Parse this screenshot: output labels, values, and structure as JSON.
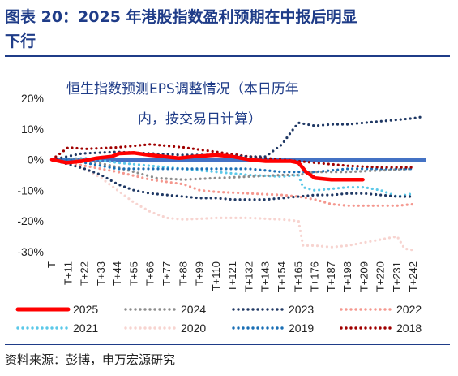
{
  "figure": {
    "title_line1": "图表 20：2025 年港股指数盈利预期在中报后明显",
    "title_line2": "下行",
    "source": "资料来源：彭博，申万宏源研究"
  },
  "chart_data": {
    "type": "line",
    "title_line1": "恒生指数预测EPS调整情况（本日历年",
    "title_line2": "内，按交易日计算）",
    "xlabel": "",
    "ylabel": "",
    "ylim": [
      -30,
      20
    ],
    "yticks": [
      20,
      10,
      0,
      -10,
      -20,
      -30
    ],
    "ytick_labels": [
      "20%",
      "10%",
      "0%",
      "-10%",
      "-20%",
      "-30%"
    ],
    "x_range": [
      0,
      250
    ],
    "xticks": [
      0,
      11,
      22,
      33,
      44,
      55,
      66,
      77,
      88,
      99,
      110,
      121,
      132,
      143,
      154,
      165,
      176,
      187,
      198,
      209,
      220,
      231,
      242
    ],
    "xtick_labels": [
      "T",
      "T+11",
      "T+22",
      "T+33",
      "T+44",
      "T+55",
      "T+66",
      "T+77",
      "T+88",
      "T+99",
      "T+110",
      "T+121",
      "T+132",
      "T+143",
      "T+154",
      "T+165",
      "T+176",
      "T+187",
      "T+198",
      "T+209",
      "T+220",
      "T+231",
      "T+242"
    ],
    "legend_position": "bottom",
    "zero_line_color": "#4472c4",
    "series": [
      {
        "name": "2025",
        "color": "#ff0000",
        "style": "solid",
        "x": [
          0,
          10,
          20,
          30,
          40,
          45,
          55,
          65,
          75,
          85,
          95,
          110,
          121,
          132,
          143,
          154,
          160,
          165,
          170,
          176,
          187,
          198,
          208
        ],
        "y": [
          0,
          -1,
          -0.5,
          0.5,
          1,
          2,
          2.2,
          1.5,
          1,
          0.5,
          1,
          1.5,
          1,
          0,
          -0.5,
          -0.5,
          -0.5,
          -1,
          -4,
          -6,
          -6.5,
          -6.5,
          -6.5
        ]
      },
      {
        "name": "2024",
        "color": "#8c8c8c",
        "style": "dotted",
        "x": [
          0,
          20,
          40,
          55,
          70,
          88,
          110,
          132,
          154,
          165,
          176,
          198,
          220,
          242
        ],
        "y": [
          0,
          0,
          -2,
          -4,
          -6,
          -6.5,
          -6,
          -5.5,
          -5,
          -5,
          -4,
          -4,
          -3.5,
          -3
        ]
      },
      {
        "name": "2023",
        "color": "#1f3864",
        "style": "dotted",
        "x": [
          0,
          20,
          44,
          66,
          88,
          110,
          132,
          143,
          154,
          160,
          165,
          176,
          187,
          198,
          209,
          220,
          231,
          242,
          248
        ],
        "y": [
          0,
          2,
          2.5,
          2,
          1.5,
          1.5,
          1,
          1,
          5,
          9,
          12,
          11,
          11.5,
          11.5,
          12,
          12.5,
          13,
          13.5,
          14
        ]
      },
      {
        "name": "2022",
        "color": "#f4978e",
        "style": "dotted",
        "x": [
          0,
          22,
          44,
          66,
          88,
          99,
          110,
          132,
          154,
          165,
          176,
          187,
          198,
          209,
          220,
          231,
          242
        ],
        "y": [
          0,
          -2,
          -4,
          -6.5,
          -8,
          -10,
          -10.5,
          -11,
          -11.5,
          -12,
          -13,
          -14.5,
          -15,
          -15,
          -15,
          -15,
          -14.5
        ]
      },
      {
        "name": "2021",
        "color": "#5bc8e8",
        "style": "dotted",
        "x": [
          0,
          22,
          44,
          66,
          88,
          110,
          132,
          154,
          165,
          168,
          176,
          187,
          198,
          209,
          220,
          231,
          242
        ],
        "y": [
          0,
          0.5,
          -1,
          -2,
          -3,
          -4,
          -5,
          -5.5,
          -5,
          -9,
          -10,
          -9.5,
          -9,
          -9,
          -10,
          -12,
          -11
        ]
      },
      {
        "name": "2020",
        "color": "#f7d4d0",
        "style": "dotted",
        "x": [
          0,
          11,
          22,
          33,
          44,
          55,
          66,
          77,
          88,
          110,
          132,
          154,
          165,
          168,
          176,
          187,
          198,
          209,
          220,
          231,
          236,
          242
        ],
        "y": [
          0,
          -1,
          -3,
          -6,
          -10,
          -14,
          -17,
          -19,
          -19.5,
          -19,
          -19,
          -19.5,
          -20,
          -28,
          -28,
          -28.5,
          -28,
          -27,
          -26,
          -25,
          -29,
          -29.5
        ]
      },
      {
        "name": "2019",
        "color": "#1a6fb5",
        "style": "dotted",
        "x": [
          0,
          11,
          22,
          33,
          44,
          55,
          66,
          88,
          110,
          132,
          154,
          165,
          176,
          198,
          220,
          242
        ],
        "y": [
          0,
          0,
          -1,
          -2,
          -3,
          -3,
          -3,
          -3,
          -3,
          -3,
          -4,
          -4,
          -4,
          -3,
          -3,
          -3
        ]
      },
      {
        "name": "2018",
        "color": "#a00000",
        "style": "dotted",
        "x": [
          0,
          11,
          22,
          44,
          66,
          77,
          88,
          110,
          132,
          154,
          176,
          198,
          220,
          242
        ],
        "y": [
          0,
          4,
          3.5,
          4,
          5,
          4.5,
          4,
          2.5,
          1,
          0,
          -1,
          -2,
          -2.5,
          -2.5
        ]
      },
      {
        "name": "2023b",
        "color": "#1f3864",
        "style": "dotted",
        "legend": false,
        "x": [
          0,
          11,
          22,
          33,
          44,
          55,
          66,
          77,
          88,
          99,
          110,
          121,
          132,
          143,
          154,
          165,
          176,
          187,
          198,
          209,
          220,
          231,
          242
        ],
        "y": [
          0,
          -1.5,
          -3,
          -5,
          -8,
          -10,
          -11,
          -11.5,
          -12,
          -12.5,
          -12.5,
          -13,
          -13,
          -13,
          -12.5,
          -12,
          -11.5,
          -11.5,
          -11,
          -11,
          -11.5,
          -12,
          -12
        ]
      }
    ]
  }
}
